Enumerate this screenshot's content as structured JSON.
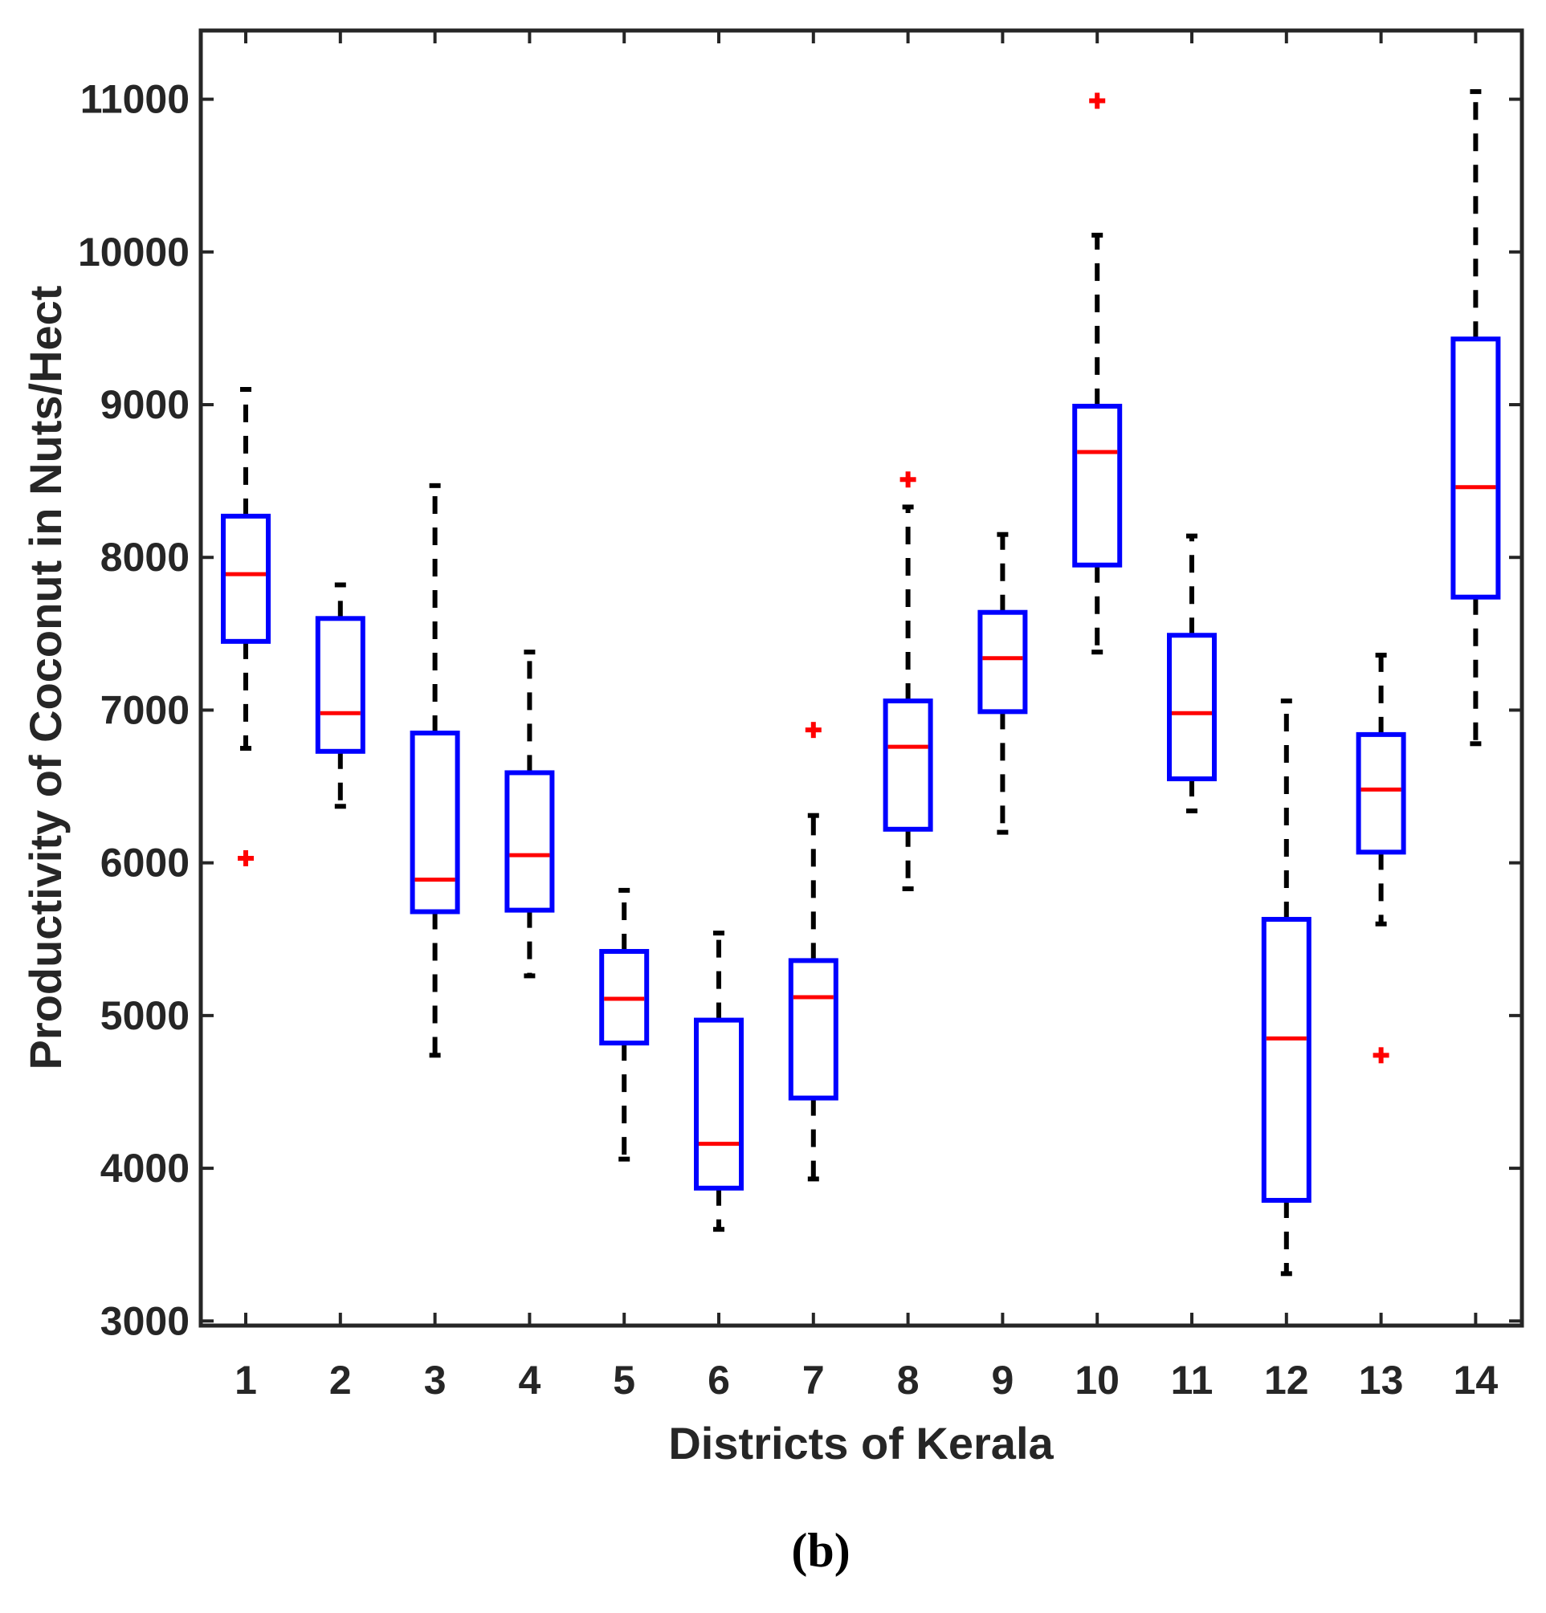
{
  "chart_data": {
    "type": "boxplot",
    "title": "",
    "xlabel": "Districts of Kerala",
    "ylabel": "Productivity of Coconut in Nuts/Hect",
    "caption_letter": "b",
    "caption_open": "(",
    "caption_close": ")",
    "categories": [
      "1",
      "2",
      "3",
      "4",
      "5",
      "6",
      "7",
      "8",
      "9",
      "10",
      "11",
      "12",
      "13",
      "14"
    ],
    "ylim": [
      2970,
      11450
    ],
    "yticks": [
      3000,
      4000,
      5000,
      6000,
      7000,
      8000,
      9000,
      10000,
      11000
    ],
    "ytick_labels": [
      "3000",
      "4000",
      "5000",
      "6000",
      "7000",
      "8000",
      "9000",
      "10000",
      "11000"
    ],
    "boxes": [
      {
        "district": "1",
        "whisker_low": 6750,
        "q1": 7450,
        "median": 7890,
        "q3": 8270,
        "whisker_high": 9100,
        "outliers": [
          6030
        ]
      },
      {
        "district": "2",
        "whisker_low": 6370,
        "q1": 6730,
        "median": 6980,
        "q3": 7600,
        "whisker_high": 7820,
        "outliers": []
      },
      {
        "district": "3",
        "whisker_low": 4740,
        "q1": 5680,
        "median": 5890,
        "q3": 6850,
        "whisker_high": 8470,
        "outliers": []
      },
      {
        "district": "4",
        "whisker_low": 5260,
        "q1": 5690,
        "median": 6050,
        "q3": 6590,
        "whisker_high": 7380,
        "outliers": []
      },
      {
        "district": "5",
        "whisker_low": 4060,
        "q1": 4820,
        "median": 5110,
        "q3": 5420,
        "whisker_high": 5820,
        "outliers": []
      },
      {
        "district": "6",
        "whisker_low": 3600,
        "q1": 3870,
        "median": 4160,
        "q3": 4970,
        "whisker_high": 5540,
        "outliers": []
      },
      {
        "district": "7",
        "whisker_low": 3930,
        "q1": 4460,
        "median": 5120,
        "q3": 5360,
        "whisker_high": 6310,
        "outliers": [
          6870
        ]
      },
      {
        "district": "8",
        "whisker_low": 5830,
        "q1": 6220,
        "median": 6760,
        "q3": 7060,
        "whisker_high": 8330,
        "outliers": [
          8510
        ]
      },
      {
        "district": "9",
        "whisker_low": 6200,
        "q1": 6990,
        "median": 7340,
        "q3": 7640,
        "whisker_high": 8150,
        "outliers": []
      },
      {
        "district": "10",
        "whisker_low": 7380,
        "q1": 7950,
        "median": 8690,
        "q3": 8990,
        "whisker_high": 10110,
        "outliers": [
          10990
        ]
      },
      {
        "district": "11",
        "whisker_low": 6340,
        "q1": 6550,
        "median": 6980,
        "q3": 7490,
        "whisker_high": 8140,
        "outliers": []
      },
      {
        "district": "12",
        "whisker_low": 3310,
        "q1": 3790,
        "median": 4850,
        "q3": 5630,
        "whisker_high": 7060,
        "outliers": []
      },
      {
        "district": "13",
        "whisker_low": 5600,
        "q1": 6070,
        "median": 6480,
        "q3": 6840,
        "whisker_high": 7360,
        "outliers": [
          4740
        ]
      },
      {
        "district": "14",
        "whisker_low": 6780,
        "q1": 7740,
        "median": 8460,
        "q3": 9430,
        "whisker_high": 11050,
        "outliers": []
      }
    ],
    "colors": {
      "box": "#0000ff",
      "median": "#ff0000",
      "whisker": "#000000",
      "outlier": "#ff0000",
      "axis": "#262626"
    },
    "grid": false,
    "legend": "none"
  }
}
